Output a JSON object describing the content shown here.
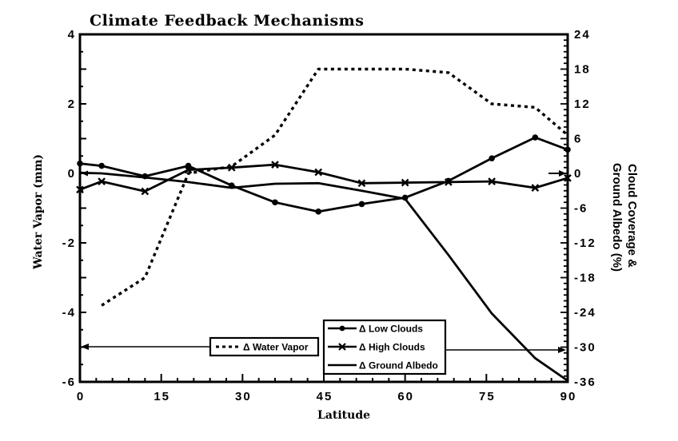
{
  "chart_data": {
    "type": "line",
    "title": "Climate Feedback Mechanisms",
    "xlabel": "Latitude",
    "ylabel": "Water Vapor (mm)",
    "y2label": [
      "Cloud Coverage &",
      "Ground Albedo (%)"
    ],
    "xlim": [
      0,
      90
    ],
    "ylim": [
      -6,
      4
    ],
    "y2lim": [
      -36,
      24
    ],
    "xticks": [
      "0",
      "15",
      "30",
      "45",
      "60",
      "75",
      "90"
    ],
    "yticks": [
      "4",
      "2",
      "0",
      "-2",
      "-4",
      "-6"
    ],
    "y2ticks": [
      "24",
      "18",
      "12",
      "6",
      "0",
      "-6",
      "-12",
      "-18",
      "-24",
      "-30",
      "-36"
    ],
    "x_minor_step": 3,
    "y_minor_step": 0.5,
    "y2_minor_step": 1,
    "grid": false,
    "legend_placement": "bottom",
    "series": [
      {
        "name": "Δ Water Vapor",
        "y_axis": 1,
        "dashed": true,
        "marker": "none",
        "x": [
          4,
          12,
          20,
          28,
          36,
          44,
          52,
          60,
          68,
          76,
          84,
          90
        ],
        "values": [
          -3.8,
          -3.0,
          0.0,
          0.2,
          1.1,
          3.0,
          3.0,
          3.0,
          2.9,
          2.0,
          1.9,
          1.1
        ]
      },
      {
        "name": "Δ Low Clouds",
        "y_axis": 2,
        "dashed": false,
        "marker": "circle-marker",
        "x": [
          0,
          4,
          12,
          20,
          28,
          36,
          44,
          52,
          60,
          68,
          76,
          84,
          90
        ],
        "values": [
          1.7,
          1.3,
          -0.5,
          1.3,
          -2.1,
          -5.0,
          -6.6,
          -5.3,
          -4.2,
          -1.3,
          2.6,
          6.2,
          4.1
        ]
      },
      {
        "name": "Δ High Clouds",
        "y_axis": 2,
        "dashed": false,
        "marker": "x-marker",
        "x": [
          0,
          4,
          12,
          20,
          28,
          36,
          44,
          52,
          60,
          68,
          76,
          84,
          90
        ],
        "values": [
          -2.8,
          -1.4,
          -3.1,
          0.6,
          1.0,
          1.5,
          0.2,
          -1.7,
          -1.6,
          -1.5,
          -1.4,
          -2.5,
          -0.8
        ]
      },
      {
        "name": "Δ Ground Albedo",
        "y_axis": 2,
        "dashed": false,
        "marker": "none",
        "x": [
          0,
          4,
          12,
          20,
          28,
          36,
          44,
          52,
          60,
          68,
          76,
          84,
          90
        ],
        "values": [
          0.1,
          0.0,
          -0.7,
          -1.5,
          -2.5,
          -1.8,
          -1.7,
          -3.0,
          -4.4,
          -14.1,
          -24.2,
          -31.9,
          -35.8
        ]
      }
    ]
  },
  "colors": {
    "ink": "#000000",
    "background": "#ffffff"
  }
}
